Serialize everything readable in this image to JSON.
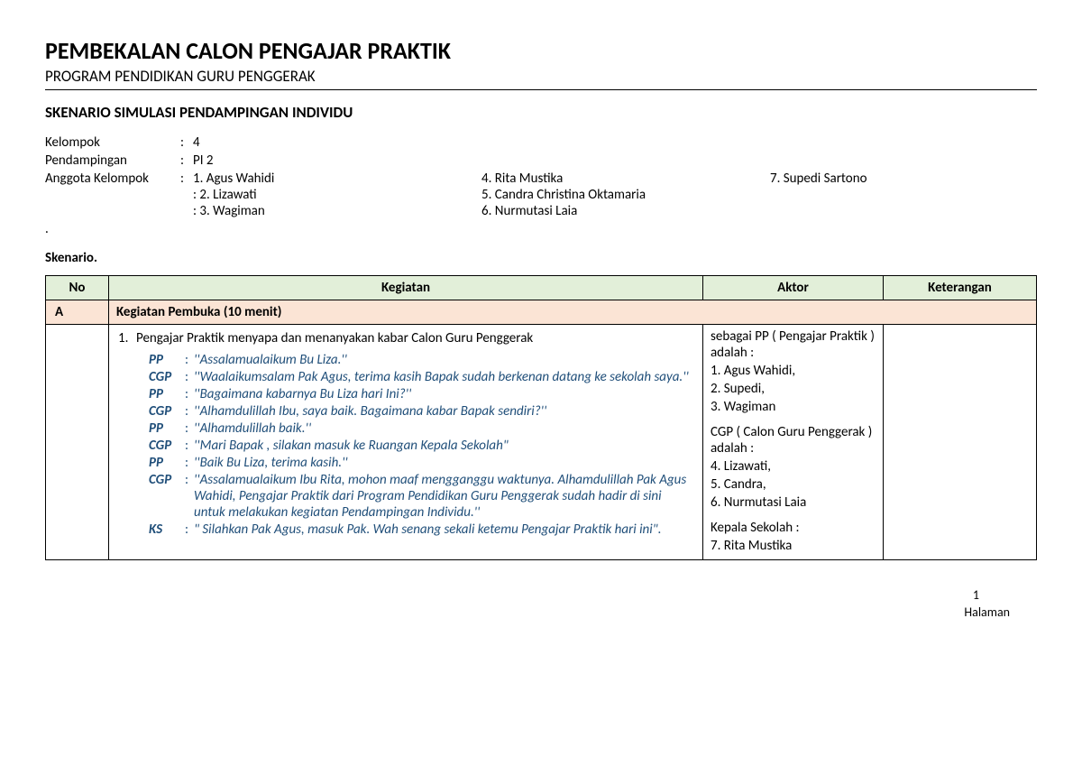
{
  "header": {
    "title": "PEMBEKALAN CALON PENGAJAR PRAKTIK",
    "subtitle": "PROGRAM PENDIDIKAN GURU PENGGERAK"
  },
  "section_title": "SKENARIO SIMULASI PENDAMPINGAN INDIVIDU",
  "meta": {
    "kelompok_label": "Kelompok",
    "kelompok_value": "4",
    "pendampingan_label": "Pendampingan",
    "pendampingan_value": "PI  2",
    "anggota_label": "Anggota Kelompok",
    "members_col1": [
      "1. Agus Wahidi",
      ": 2. Lizawati",
      ": 3. Wagiman"
    ],
    "members_col2": [
      "4. Rita Mustika",
      "5. Candra Christina Oktamaria",
      "6. Nurmutasi Laia"
    ],
    "members_col3": [
      "7.  Supedi Sartono"
    ]
  },
  "skenario_label": "Skenario.",
  "dot": ".",
  "table": {
    "headers": {
      "no": "No",
      "kegiatan": "Kegiatan",
      "aktor": "Aktor",
      "keterangan": "Keterangan"
    },
    "section": {
      "letter": "A",
      "title": "Kegiatan Pembuka (10 menit)"
    },
    "row1": {
      "num": "1.",
      "main": "Pengajar Praktik menyapa dan menanyakan kabar Calon Guru Penggerak",
      "dialog": [
        {
          "speaker": "PP",
          "text": "''Assalamualaikum Bu Liza.''"
        },
        {
          "speaker": "CGP",
          "text": "''Waalaikumsalam Pak Agus, terima kasih Bapak sudah berkenan datang ke   sekolah saya.''"
        },
        {
          "speaker": "PP",
          "text": "''Bagaimana kabarnya Bu Liza hari Ini?''"
        },
        {
          "speaker": "CGP",
          "text": "''Alhamdulillah Ibu, saya baik. Bagaimana kabar Bapak sendiri?''"
        },
        {
          "speaker": "PP",
          "text": "''Alhamdulillah baik.''"
        },
        {
          "speaker": "CGP",
          "text": "''Mari Bapak , silakan masuk ke Ruangan Kepala Sekolah\""
        },
        {
          "speaker": "PP",
          "text": "''Baik Bu Liza, terima kasih.''"
        },
        {
          "speaker": "CGP",
          "text": "''Assalamualaikum Ibu Rita,  mohon maaf mengganggu waktunya. Alhamdulillah Pak Agus Wahidi, Pengajar Praktik dari Program Pendidikan Guru Penggerak sudah hadir di sini untuk melakukan kegiatan Pendampingan Individu.''"
        },
        {
          "speaker": "KS",
          "text": "\" Silahkan Pak Agus, masuk Pak. Wah senang sekali ketemu Pengajar Praktik hari ini\"."
        }
      ],
      "aktor": {
        "pp_label": "sebagai PP ( Pengajar Praktik ) adalah :",
        "pp_list": [
          " 1. Agus Wahidi,",
          " 2. Supedi,",
          " 3. Wagiman"
        ],
        "cgp_label": "CGP ( Calon Guru Penggerak ) adalah  :",
        "cgp_list": [
          " 4. Lizawati,",
          " 5. Candra,",
          " 6. Nurmutasi Laia"
        ],
        "ks_label": "Kepala Sekolah :",
        "ks_list": [
          " 7. Rita Mustika"
        ]
      }
    }
  },
  "footer": {
    "page_num": "1",
    "page_label": "Halaman"
  },
  "colors": {
    "header_bg": "#e2efd9",
    "section_bg": "#fbe4d5",
    "dialog_color": "#1f4e79",
    "text_color": "#000000",
    "border_color": "#000000"
  }
}
